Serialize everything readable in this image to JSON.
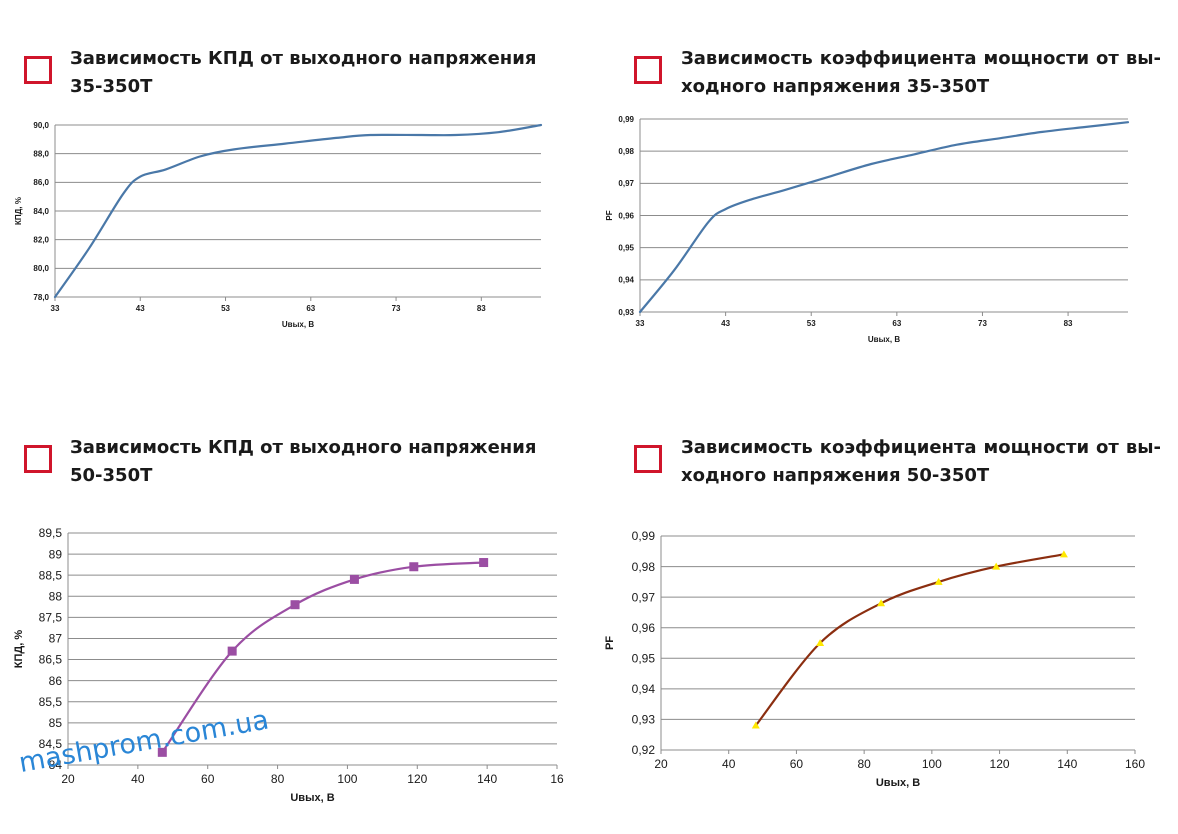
{
  "watermark": "mashprom.com.ua",
  "colors": {
    "marker": "#d0152b",
    "line_blue": "#4a78a8",
    "line_purple": "#9b4ea3",
    "line_brown": "#8b2e10",
    "marker_yellow": "#ffe800",
    "grid": "#8c8c8c",
    "watermark": "#2a86d6"
  },
  "panels": [
    {
      "title_line1": "Зависимость КПД от выходного напряжения",
      "title_line2": "35-350Т"
    },
    {
      "title_line1": "Зависимость коэффициента мощности от вы-",
      "title_line2": "ходного напряжения 35-350Т"
    },
    {
      "title_line1": "Зависимость КПД от выходного напряжения",
      "title_line2": "50-350Т"
    },
    {
      "title_line1": "Зависимость коэффициента мощности от вы-",
      "title_line2": "ходного напряжения 50-350Т"
    }
  ],
  "chart_data": [
    {
      "type": "line",
      "xlabel": "Uвых, В",
      "ylabel": "КПД, %",
      "xlim": [
        33,
        90
      ],
      "ylim": [
        78,
        90
      ],
      "x_ticks": [
        "33",
        "43",
        "53",
        "63",
        "73",
        "83"
      ],
      "y_ticks": [
        "78,0",
        "80,0",
        "82,0",
        "84,0",
        "86,0",
        "88,0",
        "90,0"
      ],
      "grid": true,
      "series": [
        {
          "x": [
            33,
            37,
            41,
            43,
            46,
            50,
            54,
            60,
            66,
            70,
            76,
            80,
            85,
            90
          ],
          "y": [
            78,
            81.4,
            85.2,
            86.4,
            86.9,
            87.8,
            88.3,
            88.7,
            89.1,
            89.3,
            89.3,
            89.3,
            89.5,
            90.0
          ]
        }
      ]
    },
    {
      "type": "line",
      "xlabel": "Uвых, В",
      "ylabel": "PF",
      "xlim": [
        33,
        90
      ],
      "ylim": [
        0.93,
        0.99
      ],
      "x_ticks": [
        "33",
        "43",
        "53",
        "63",
        "73",
        "83"
      ],
      "y_ticks": [
        "0,93",
        "0,94",
        "0,95",
        "0,96",
        "0,97",
        "0,98",
        "0,99"
      ],
      "grid": true,
      "series": [
        {
          "x": [
            33,
            37,
            41,
            43,
            46,
            50,
            55,
            60,
            65,
            70,
            75,
            80,
            85,
            90
          ],
          "y": [
            0.93,
            0.943,
            0.958,
            0.962,
            0.965,
            0.968,
            0.972,
            0.976,
            0.979,
            0.982,
            0.984,
            0.986,
            0.9875,
            0.989
          ]
        }
      ]
    },
    {
      "type": "line",
      "xlabel": "Uвых, В",
      "ylabel": "КПД, %",
      "xlim": [
        20,
        160
      ],
      "ylim": [
        84,
        89.5
      ],
      "x_ticks": [
        "20",
        "40",
        "60",
        "80",
        "100",
        "120",
        "140",
        "16"
      ],
      "y_ticks": [
        "84",
        "84,5",
        "85",
        "85,5",
        "86",
        "86,5",
        "87",
        "87,5",
        "88",
        "88,5",
        "89",
        "89,5"
      ],
      "grid": true,
      "series": [
        {
          "x": [
            47,
            67,
            85,
            102,
            119,
            139
          ],
          "y": [
            84.3,
            86.7,
            87.8,
            88.4,
            88.7,
            88.8
          ],
          "marker": "square"
        }
      ]
    },
    {
      "type": "line",
      "xlabel": "Uвых, В",
      "ylabel": "PF",
      "xlim": [
        20,
        160
      ],
      "ylim": [
        0.92,
        0.99
      ],
      "x_ticks": [
        "20",
        "40",
        "60",
        "80",
        "100",
        "120",
        "140",
        "160"
      ],
      "y_ticks": [
        "0,92",
        "0,93",
        "0,94",
        "0,95",
        "0,96",
        "0,97",
        "0,98",
        "0,99"
      ],
      "grid": true,
      "series": [
        {
          "x": [
            48,
            67,
            85,
            102,
            119,
            139
          ],
          "y": [
            0.928,
            0.955,
            0.968,
            0.975,
            0.98,
            0.984
          ],
          "marker": "triangle"
        }
      ]
    }
  ]
}
